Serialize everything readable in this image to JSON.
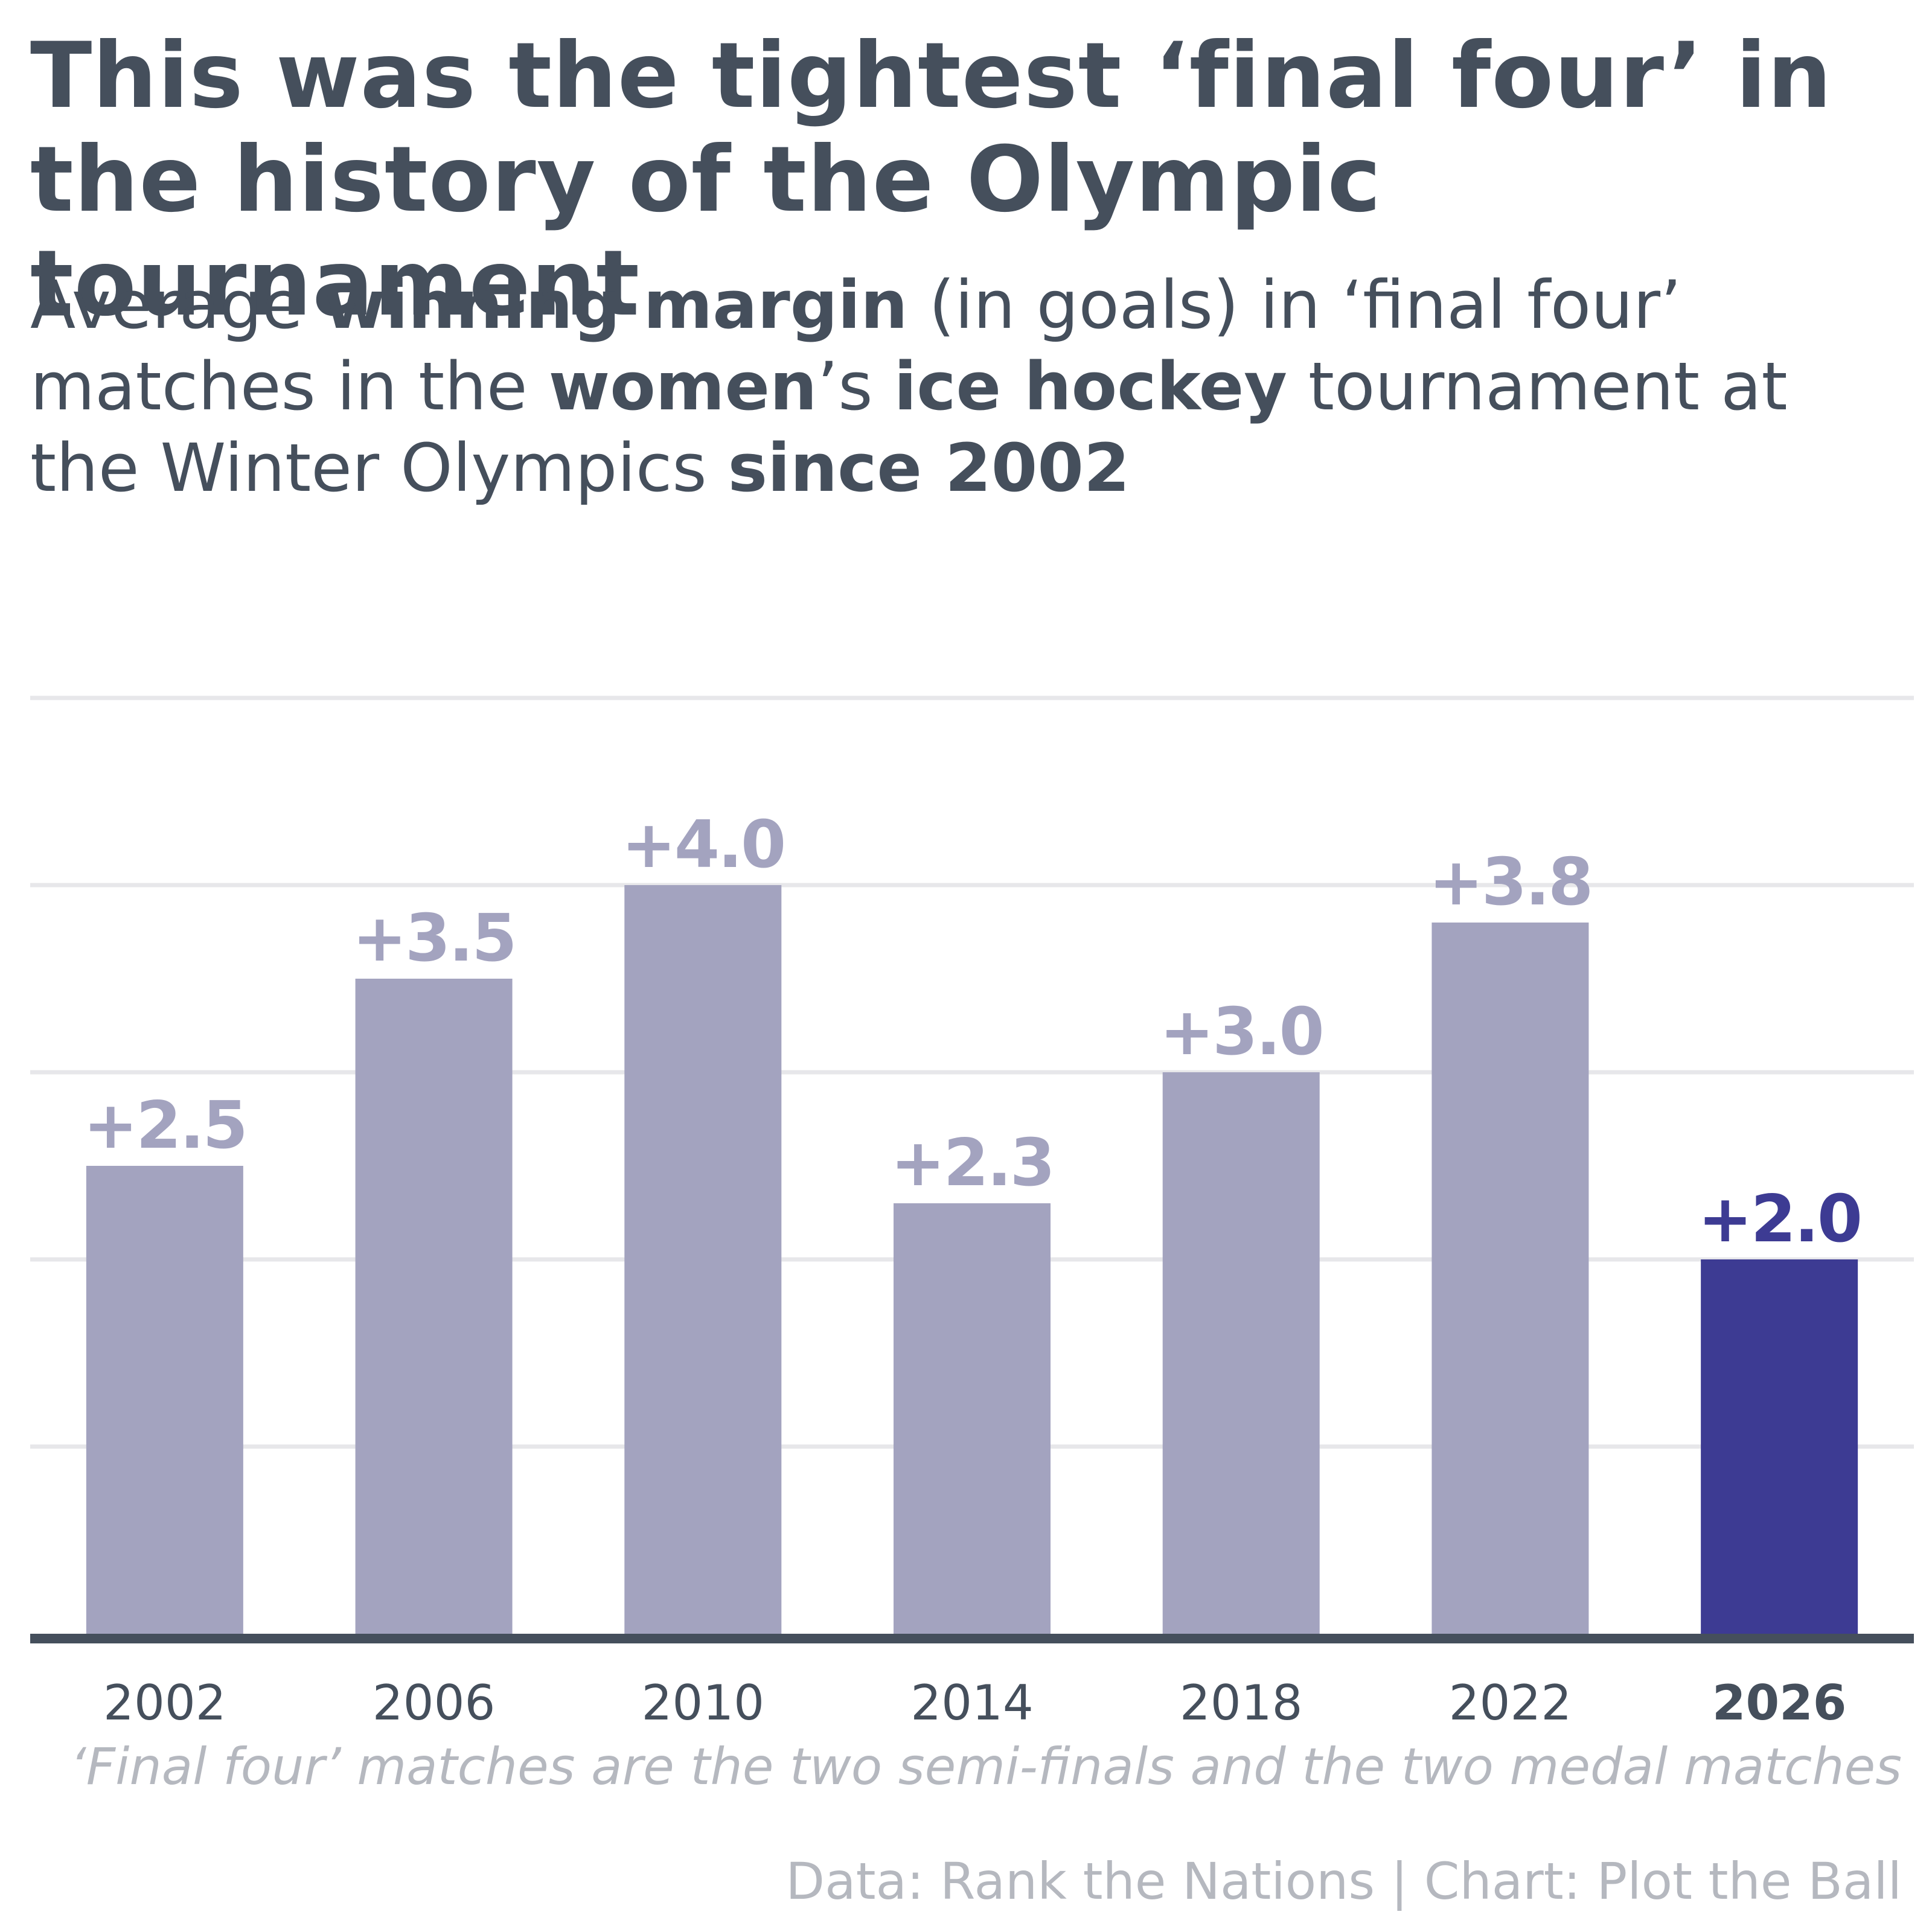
{
  "header": {
    "title": "This was the tightest ‘final four’ in the history of the Olympic tournament",
    "subtitle_parts": [
      {
        "text": "Average ",
        "bold": false
      },
      {
        "text": "winning margin",
        "bold": true
      },
      {
        "text": " (in goals) in ‘final four’ matches in the ",
        "bold": false
      },
      {
        "text": "women",
        "bold": true
      },
      {
        "text": "’s ",
        "bold": false
      },
      {
        "text": "ice hockey",
        "bold": true
      },
      {
        "text": " tournament at the Winter Olympics ",
        "bold": false
      },
      {
        "text": "since 2002",
        "bold": true
      }
    ]
  },
  "chart_data": {
    "type": "bar",
    "categories": [
      "2002",
      "2006",
      "2010",
      "2014",
      "2018",
      "2022",
      "2026"
    ],
    "values": [
      2.5,
      3.5,
      4.0,
      2.3,
      3.0,
      3.8,
      2.0
    ],
    "data_labels": [
      "+2.5",
      "+3.5",
      "+4.0",
      "+2.3",
      "+3.0",
      "+3.8",
      "+2.0"
    ],
    "highlight_category": "2026",
    "ylim": [
      0,
      5
    ],
    "gridlines": [
      1,
      2,
      3,
      4,
      5
    ],
    "grid": true,
    "xlabel": "",
    "ylabel": "",
    "colors": {
      "bar": "#a3a3bf",
      "highlight": "#3d3b93",
      "grid": "#e7e7ea",
      "axis": "#454f5c",
      "tick": "#454f5c"
    }
  },
  "footer": {
    "note": "‘Final four’ matches are the two semi-finals and the two medal matches",
    "credit": "Data: Rank the Nations | Chart: Plot the Ball"
  }
}
